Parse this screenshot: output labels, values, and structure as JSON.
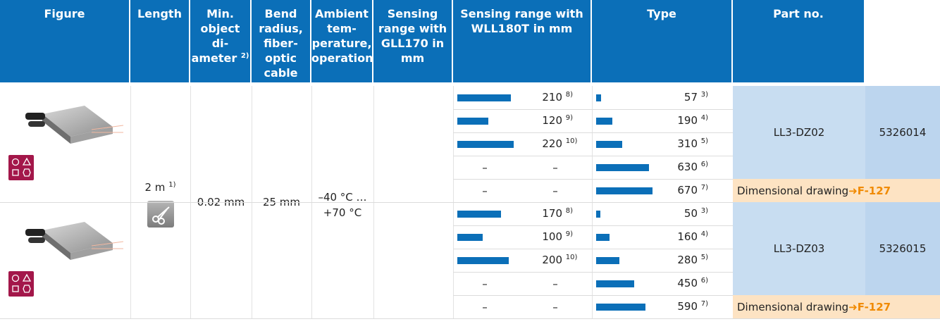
{
  "header": {
    "columns": [
      {
        "lines": [
          "Figure"
        ]
      },
      {
        "lines": [
          "Length"
        ]
      },
      {
        "lines": [
          "Min.",
          "object di-",
          "ameter"
        ],
        "note": "2)"
      },
      {
        "lines": [
          "Bend",
          "radius,",
          "fiber-optic",
          "cable"
        ]
      },
      {
        "lines": [
          "Ambient",
          "tem-",
          "perature,",
          "operation"
        ]
      },
      {
        "lines": [
          "Sensing range with",
          "GLL170 in mm"
        ]
      },
      {
        "lines": [
          "Sensing range with",
          "WLL180T in mm"
        ]
      },
      {
        "lines": [
          "Type"
        ]
      },
      {
        "lines": [
          "Part no."
        ]
      }
    ]
  },
  "shared": {
    "length": {
      "text": "2 m",
      "note": "1)"
    },
    "min_object": "0.02 mm",
    "bend_radius": "25 mm",
    "ambient": [
      "–40 °C …",
      "+70 °C"
    ]
  },
  "products": [
    {
      "type": "LL3-DZ02",
      "part_no": "5326014",
      "drawing": {
        "label": "Dimensional drawing",
        "arrow": "➜",
        "ref": "F-127"
      },
      "rows": [
        {
          "gll": {
            "value": 210,
            "note": "8)"
          },
          "wll": {
            "value": 57,
            "note": "3)"
          }
        },
        {
          "gll": {
            "value": 120,
            "note": "9)"
          },
          "wll": {
            "value": 190,
            "note": "4)"
          }
        },
        {
          "gll": {
            "value": 220,
            "note": "10)"
          },
          "wll": {
            "value": 310,
            "note": "5)"
          }
        },
        {
          "gll": {
            "bar_text": "–",
            "value_text": "–"
          },
          "wll": {
            "value": 630,
            "note": "6)"
          }
        },
        {
          "gll": {
            "bar_text": "–",
            "value_text": "–"
          },
          "wll": {
            "value": 670,
            "note": "7)"
          }
        }
      ]
    },
    {
      "type": "LL3-DZ03",
      "part_no": "5326015",
      "drawing": {
        "label": "Dimensional drawing",
        "arrow": "➜",
        "ref": "F-127"
      },
      "rows": [
        {
          "gll": {
            "value": 170,
            "note": "8)"
          },
          "wll": {
            "value": 50,
            "note": "3)"
          }
        },
        {
          "gll": {
            "value": 100,
            "note": "9)"
          },
          "wll": {
            "value": 160,
            "note": "4)"
          }
        },
        {
          "gll": {
            "value": 200,
            "note": "10)"
          },
          "wll": {
            "value": 280,
            "note": "5)"
          }
        },
        {
          "gll": {
            "bar_text": "–",
            "value_text": "–"
          },
          "wll": {
            "value": 450,
            "note": "6)"
          }
        },
        {
          "gll": {
            "bar_text": "–",
            "value_text": "–"
          },
          "wll": {
            "value": 590,
            "note": "7)"
          }
        }
      ]
    }
  ]
}
